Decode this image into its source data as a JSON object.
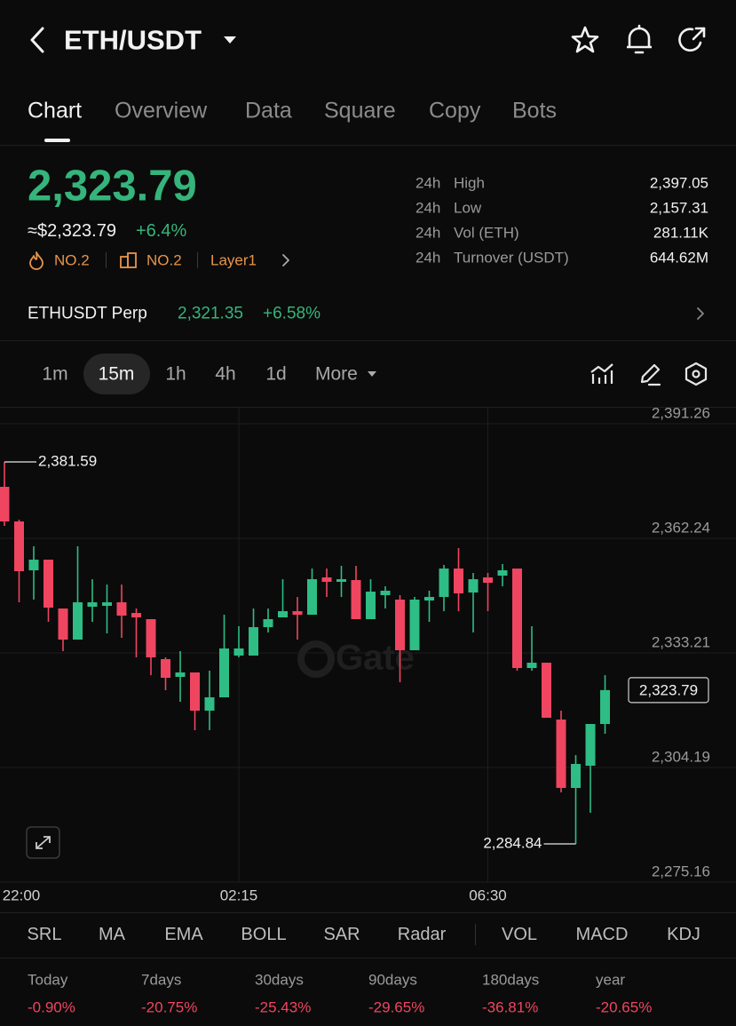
{
  "header": {
    "title": "ETH/USDT"
  },
  "tabs": [
    "Chart",
    "Overview",
    "Data",
    "Square",
    "Copy",
    "Bots"
  ],
  "ticker": {
    "price": "2,323.79",
    "usd_price": "≈$2,323.79",
    "change": "+6.4%",
    "badges": [
      "NO.2",
      "NO.2",
      "Layer1"
    ]
  },
  "stats": [
    {
      "period": "24h",
      "label": "High",
      "value": "2,397.05"
    },
    {
      "period": "24h",
      "label": "Low",
      "value": "2,157.31"
    },
    {
      "period": "24h",
      "label": "Vol (ETH)",
      "value": "281.11K"
    },
    {
      "period": "24h",
      "label": "Turnover (USDT)",
      "value": "644.62M"
    }
  ],
  "perp": {
    "name": "ETHUSDT Perp",
    "price": "2,321.35",
    "change": "+6.58%"
  },
  "intervals": [
    "1m",
    "15m",
    "1h",
    "4h",
    "1d",
    "More"
  ],
  "chart_data": {
    "type": "candlestick",
    "categories": [
      "22:00",
      null,
      null,
      null,
      null,
      null,
      null,
      null,
      null,
      null,
      null,
      null,
      null,
      null,
      null,
      null,
      "02:15",
      null,
      null,
      null,
      null,
      null,
      null,
      null,
      null,
      null,
      null,
      null,
      null,
      null,
      null,
      null,
      null,
      "06:30",
      null,
      null,
      null,
      null,
      null,
      null,
      null,
      null
    ],
    "open": [
      2375.28,
      2366.51,
      2354.13,
      2356.83,
      2344.46,
      2336.58,
      2344.91,
      2345.13,
      2346.03,
      2343.33,
      2341.76,
      2331.63,
      2327.13,
      2328.26,
      2318.58,
      2321.96,
      2332.53,
      2332.53,
      2339.73,
      2342.21,
      2343.78,
      2342.88,
      2352.33,
      2351.21,
      2351.66,
      2341.76,
      2347.83,
      2346.71,
      2333.88,
      2346.48,
      2347.38,
      2354.58,
      2348.51,
      2352.33,
      2352.78,
      2354.58,
      2329.38,
      2330.73,
      2316.33,
      2299.01,
      2304.63,
      2315.21
    ],
    "high": [
      2381.59,
      2366.96,
      2360.21,
      2356.83,
      2344.46,
      2360.21,
      2351.88,
      2350.53,
      2350.53,
      2344.46,
      2341.76,
      2332.08,
      2333.66,
      2328.26,
      2328.71,
      2342.88,
      2339.96,
      2344.46,
      2344.46,
      2351.88,
      2347.38,
      2354.58,
      2354.58,
      2355.26,
      2355.26,
      2351.88,
      2350.08,
      2347.83,
      2347.38,
      2348.96,
      2355.48,
      2359.76,
      2353.46,
      2353.46,
      2355.71,
      2354.58,
      2339.96,
      2330.73,
      2318.58,
      2307.33,
      2315.21,
      2327.58
    ],
    "low": [
      2365.38,
      2346.03,
      2346.71,
      2341.08,
      2333.66,
      2336.58,
      2341.08,
      2338.16,
      2337.03,
      2332.08,
      2327.58,
      2323.76,
      2320.83,
      2313.63,
      2313.63,
      2321.96,
      2332.08,
      2332.53,
      2338.38,
      2342.21,
      2336.58,
      2342.88,
      2347.38,
      2347.38,
      2341.76,
      2341.76,
      2344.46,
      2325.78,
      2333.88,
      2341.08,
      2343.78,
      2343.78,
      2338.38,
      2343.78,
      2350.08,
      2328.71,
      2328.71,
      2316.78,
      2297.88,
      2284.84,
      2292.71,
      2312.73
    ],
    "close": [
      2366.51,
      2353.91,
      2356.83,
      2344.68,
      2336.58,
      2346.03,
      2346.03,
      2346.03,
      2342.66,
      2342.21,
      2332.08,
      2326.91,
      2328.26,
      2318.58,
      2321.96,
      2334.33,
      2334.33,
      2339.73,
      2341.76,
      2343.78,
      2342.88,
      2351.88,
      2351.21,
      2351.88,
      2341.76,
      2348.73,
      2348.96,
      2333.88,
      2346.71,
      2347.38,
      2354.58,
      2348.28,
      2351.88,
      2350.98,
      2354.13,
      2329.38,
      2330.73,
      2316.78,
      2299.01,
      2305.08,
      2315.21,
      2323.79
    ],
    "up_color": "#2ebd85",
    "down_color": "#ef4560",
    "ylim": [
      2275.16,
      2391.26
    ],
    "yticks": [
      {
        "value": 2391.26,
        "label": "2,391.26"
      },
      {
        "value": 2362.24,
        "label": "2,362.24"
      },
      {
        "value": 2333.21,
        "label": "2,333.21"
      },
      {
        "value": 2304.19,
        "label": "2,304.19"
      },
      {
        "value": 2275.16,
        "label": "2,275.16"
      }
    ],
    "grid": true,
    "watermark": "Gate",
    "high_marker": {
      "value": 2381.59,
      "label": "2,381.59"
    },
    "low_marker": {
      "value": 2284.84,
      "label": "2,284.84"
    },
    "last_price": {
      "value": 2323.79,
      "label": "2,323.79"
    }
  },
  "indicators": [
    "SRL",
    "MA",
    "EMA",
    "BOLL",
    "SAR",
    "Radar",
    "VOL",
    "MACD",
    "KDJ"
  ],
  "performance": [
    {
      "period": "Today",
      "change": "-0.90%"
    },
    {
      "period": "7days",
      "change": "-20.75%"
    },
    {
      "period": "30days",
      "change": "-25.43%"
    },
    {
      "period": "90days",
      "change": "-29.65%"
    },
    {
      "period": "180days",
      "change": "-36.81%"
    },
    {
      "period": "year",
      "change": "-20.65%"
    }
  ]
}
